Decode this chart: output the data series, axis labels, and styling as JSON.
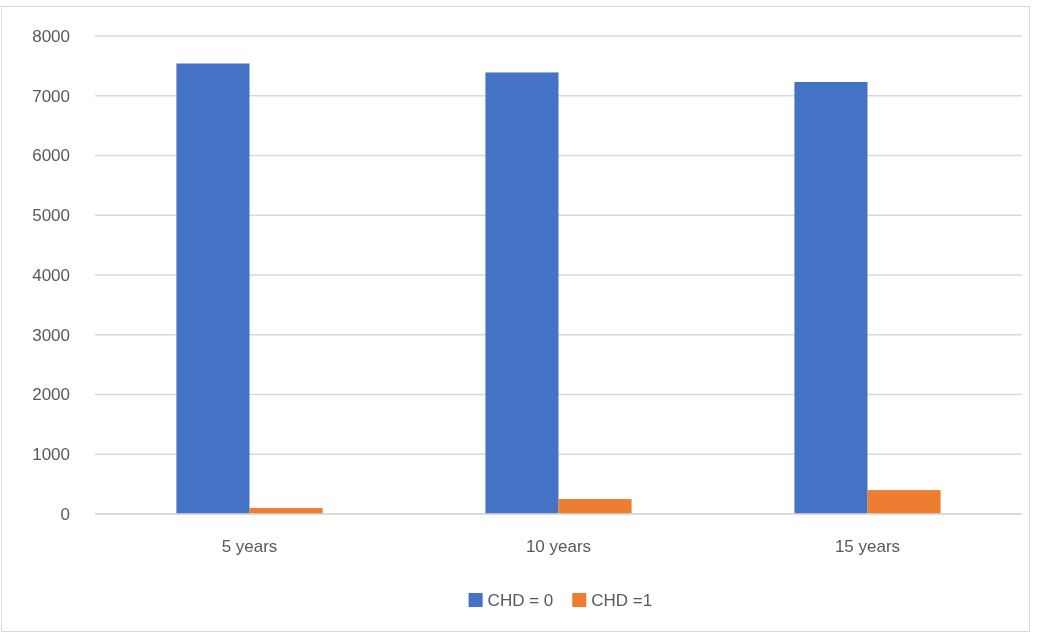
{
  "chart_data": {
    "type": "bar",
    "categories": [
      "5 years",
      "10 years",
      "15 years"
    ],
    "series": [
      {
        "name": "CHD = 0",
        "color": "#4472c4",
        "values": [
          7540,
          7390,
          7230
        ]
      },
      {
        "name": "CHD =1",
        "color": "#ed7d31",
        "values": [
          100,
          250,
          400
        ]
      }
    ],
    "ylim": [
      0,
      8000
    ],
    "yticks": [
      0,
      1000,
      2000,
      3000,
      4000,
      5000,
      6000,
      7000,
      8000
    ],
    "grid": "y",
    "legend": "bottom"
  }
}
